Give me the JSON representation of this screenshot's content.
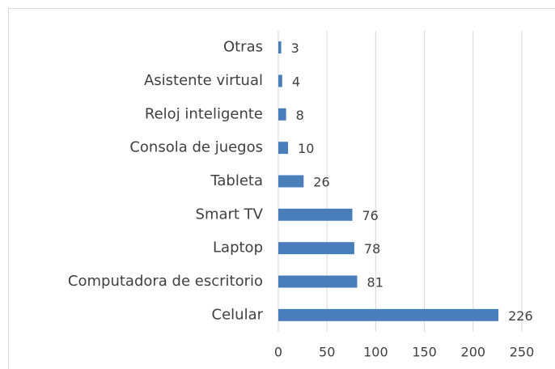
{
  "chart_data": {
    "type": "bar",
    "orientation": "horizontal",
    "categories": [
      "Otras",
      "Asistente virtual",
      "Reloj inteligente",
      "Consola de juegos",
      "Tableta",
      "Smart TV",
      "Laptop",
      "Computadora de escritorio",
      "Celular"
    ],
    "values": [
      3,
      4,
      8,
      10,
      26,
      76,
      78,
      81,
      226
    ],
    "color": "#4a7ebb",
    "xlim": [
      0,
      250
    ],
    "xticks": [
      0,
      50,
      100,
      150,
      200,
      250
    ],
    "grid": true
  }
}
